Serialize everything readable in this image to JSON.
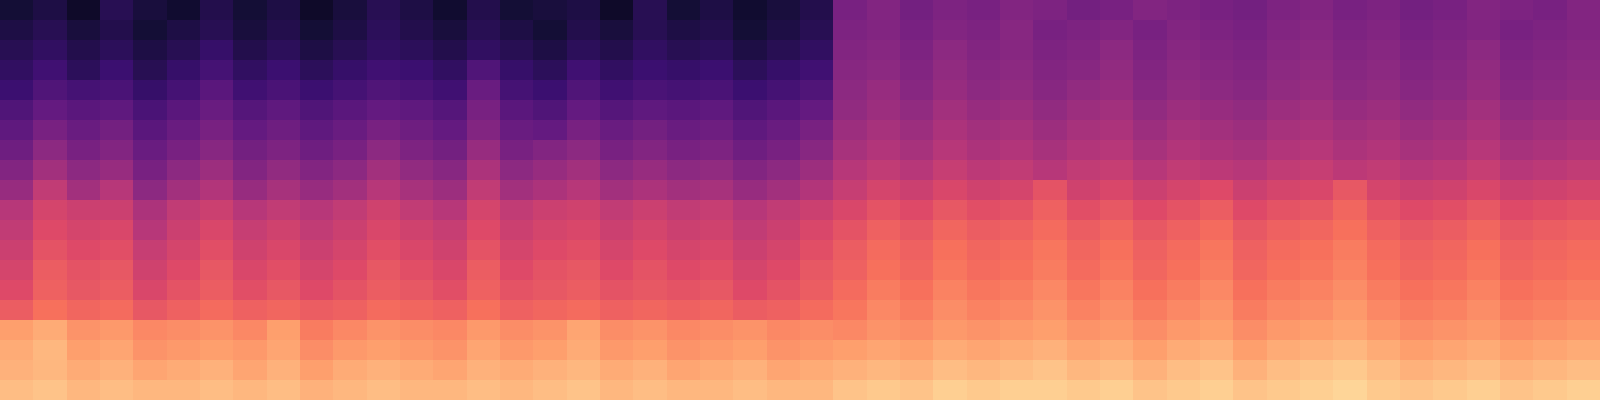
{
  "chart_data": {
    "type": "heatmap",
    "zlim": [
      -80,
      0
    ],
    "tick_labels": false,
    "cells": [
      [
        -72,
        -70,
        -74,
        -68,
        -71,
        -73,
        -69,
        -72,
        -70,
        -74,
        -71,
        -68,
        -70,
        -73,
        -69,
        -72,
        -71,
        -70,
        -74,
        -68,
        -72,
        -70,
        -73,
        -71,
        -69,
        -52,
        -50,
        -53,
        -51,
        -52,
        -50,
        -51,
        -53,
        -52,
        -50,
        -51,
        -52,
        -53,
        -51,
        -50,
        -52,
        -51,
        -53,
        -52,
        -50,
        -51,
        -52,
        -50
      ],
      [
        -70,
        -68,
        -71,
        -69,
        -72,
        -70,
        -68,
        -71,
        -69,
        -72,
        -70,
        -67,
        -69,
        -71,
        -68,
        -70,
        -72,
        -69,
        -71,
        -68,
        -70,
        -69,
        -72,
        -70,
        -68,
        -51,
        -50,
        -52,
        -50,
        -51,
        -49,
        -52,
        -51,
        -50,
        -52,
        -50,
        -51,
        -52,
        -50,
        -49,
        -51,
        -50,
        -52,
        -51,
        -50,
        -52,
        -51,
        -50
      ],
      [
        -68,
        -66,
        -69,
        -67,
        -70,
        -68,
        -65,
        -69,
        -67,
        -70,
        -68,
        -66,
        -67,
        -69,
        -66,
        -68,
        -70,
        -67,
        -69,
        -66,
        -68,
        -67,
        -70,
        -68,
        -66,
        -50,
        -49,
        -51,
        -48,
        -50,
        -49,
        -51,
        -50,
        -48,
        -51,
        -49,
        -50,
        -51,
        -49,
        -48,
        -50,
        -49,
        -51,
        -50,
        -48,
        -51,
        -50,
        -49
      ],
      [
        -66,
        -63,
        -67,
        -64,
        -68,
        -65,
        -62,
        -66,
        -64,
        -67,
        -65,
        -63,
        -64,
        -66,
        -60,
        -65,
        -67,
        -63,
        -66,
        -64,
        -65,
        -64,
        -67,
        -65,
        -63,
        -49,
        -48,
        -50,
        -47,
        -49,
        -48,
        -50,
        -49,
        -47,
        -50,
        -48,
        -49,
        -50,
        -48,
        -47,
        -49,
        -48,
        -50,
        -49,
        -47,
        -50,
        -49,
        -48
      ],
      [
        -64,
        -60,
        -62,
        -61,
        -65,
        -62,
        -58,
        -63,
        -61,
        -64,
        -62,
        -60,
        -61,
        -63,
        -55,
        -62,
        -64,
        -60,
        -63,
        -61,
        -62,
        -61,
        -64,
        -62,
        -60,
        -48,
        -46,
        -49,
        -46,
        -48,
        -47,
        -49,
        -47,
        -46,
        -49,
        -47,
        -48,
        -49,
        -47,
        -46,
        -48,
        -47,
        -49,
        -48,
        -46,
        -49,
        -48,
        -47
      ],
      [
        -60,
        -56,
        -58,
        -57,
        -61,
        -58,
        -55,
        -59,
        -57,
        -60,
        -58,
        -56,
        -57,
        -59,
        -52,
        -58,
        -60,
        -56,
        -59,
        -57,
        -58,
        -57,
        -60,
        -58,
        -56,
        -47,
        -45,
        -47,
        -44,
        -46,
        -45,
        -47,
        -45,
        -44,
        -47,
        -45,
        -46,
        -47,
        -45,
        -44,
        -46,
        -45,
        -47,
        -46,
        -44,
        -47,
        -46,
        -45
      ],
      [
        -57,
        -52,
        -55,
        -53,
        -58,
        -55,
        -52,
        -56,
        -54,
        -57,
        -55,
        -52,
        -54,
        -56,
        -50,
        -55,
        -56,
        -52,
        -55,
        -53,
        -55,
        -54,
        -57,
        -55,
        -52,
        -45,
        -43,
        -45,
        -42,
        -44,
        -43,
        -45,
        -43,
        -42,
        -45,
        -43,
        -44,
        -45,
        -43,
        -42,
        -44,
        -43,
        -45,
        -44,
        -42,
        -45,
        -44,
        -43
      ],
      [
        -54,
        -48,
        -52,
        -50,
        -55,
        -52,
        -49,
        -53,
        -51,
        -54,
        -52,
        -48,
        -51,
        -53,
        -46,
        -52,
        -50,
        -48,
        -52,
        -50,
        -52,
        -51,
        -54,
        -52,
        -49,
        -43,
        -41,
        -43,
        -40,
        -42,
        -41,
        -43,
        -41,
        -40,
        -43,
        -41,
        -42,
        -43,
        -41,
        -40,
        -42,
        -41,
        -43,
        -42,
        -40,
        -43,
        -42,
        -41
      ],
      [
        -50,
        -44,
        -48,
        -46,
        -52,
        -48,
        -45,
        -50,
        -47,
        -50,
        -48,
        -44,
        -47,
        -49,
        -42,
        -48,
        -46,
        -44,
        -48,
        -46,
        -48,
        -47,
        -50,
        -48,
        -45,
        -40,
        -38,
        -40,
        -37,
        -39,
        -38,
        -40,
        -38,
        -37,
        -40,
        -38,
        -39,
        -40,
        -38,
        -37,
        -39,
        -38,
        -40,
        -39,
        -37,
        -40,
        -39,
        -38
      ],
      [
        -46,
        -38,
        -44,
        -40,
        -48,
        -44,
        -41,
        -46,
        -43,
        -46,
        -44,
        -40,
        -43,
        -45,
        -38,
        -44,
        -42,
        -40,
        -44,
        -42,
        -44,
        -43,
        -46,
        -44,
        -41,
        -37,
        -34,
        -36,
        -33,
        -35,
        -34,
        -30,
        -35,
        -33,
        -36,
        -34,
        -32,
        -36,
        -34,
        -33,
        -29,
        -34,
        -36,
        -35,
        -33,
        -36,
        -35,
        -34
      ],
      [
        -40,
        -34,
        -36,
        -36,
        -42,
        -38,
        -36,
        -40,
        -38,
        -40,
        -38,
        -35,
        -38,
        -40,
        -34,
        -38,
        -36,
        -35,
        -38,
        -36,
        -38,
        -37,
        -40,
        -38,
        -36,
        -33,
        -30,
        -32,
        -29,
        -31,
        -30,
        -27,
        -31,
        -29,
        -32,
        -30,
        -28,
        -32,
        -30,
        -29,
        -26,
        -30,
        -32,
        -31,
        -29,
        -32,
        -31,
        -30
      ],
      [
        -38,
        -32,
        -34,
        -33,
        -40,
        -36,
        -33,
        -37,
        -35,
        -38,
        -36,
        -33,
        -35,
        -37,
        -32,
        -36,
        -34,
        -33,
        -36,
        -34,
        -36,
        -35,
        -38,
        -36,
        -33,
        -30,
        -27,
        -29,
        -26,
        -28,
        -27,
        -25,
        -28,
        -26,
        -29,
        -27,
        -25,
        -29,
        -27,
        -26,
        -24,
        -27,
        -29,
        -28,
        -26,
        -29,
        -28,
        -27
      ],
      [
        -36,
        -30,
        -32,
        -31,
        -37,
        -34,
        -31,
        -35,
        -33,
        -36,
        -34,
        -31,
        -33,
        -35,
        -30,
        -34,
        -32,
        -31,
        -34,
        -32,
        -34,
        -33,
        -36,
        -34,
        -31,
        -28,
        -25,
        -27,
        -24,
        -26,
        -25,
        -23,
        -26,
        -24,
        -27,
        -25,
        -23,
        -27,
        -25,
        -24,
        -22,
        -25,
        -27,
        -26,
        -24,
        -27,
        -26,
        -25
      ],
      [
        -34,
        -28,
        -30,
        -29,
        -35,
        -32,
        -29,
        -33,
        -31,
        -34,
        -32,
        -29,
        -31,
        -33,
        -28,
        -32,
        -30,
        -29,
        -32,
        -30,
        -32,
        -31,
        -34,
        -32,
        -29,
        -27,
        -24,
        -26,
        -23,
        -25,
        -24,
        -22,
        -25,
        -23,
        -26,
        -24,
        -22,
        -26,
        -24,
        -23,
        -21,
        -24,
        -26,
        -25,
        -23,
        -26,
        -25,
        -24
      ],
      [
        -32,
        -27,
        -29,
        -28,
        -33,
        -30,
        -28,
        -31,
        -29,
        -32,
        -30,
        -28,
        -29,
        -31,
        -27,
        -30,
        -29,
        -28,
        -30,
        -29,
        -30,
        -29,
        -32,
        -30,
        -28,
        -25,
        -22,
        -24,
        -21,
        -23,
        -22,
        -20,
        -23,
        -21,
        -24,
        -22,
        -20,
        -24,
        -22,
        -21,
        -19,
        -22,
        -24,
        -23,
        -21,
        -24,
        -23,
        -22
      ],
      [
        -28,
        -24,
        -26,
        -25,
        -29,
        -27,
        -25,
        -27,
        -26,
        -28,
        -27,
        -25,
        -26,
        -27,
        -24,
        -27,
        -26,
        -25,
        -27,
        -26,
        -27,
        -26,
        -28,
        -27,
        -25,
        -23,
        -20,
        -22,
        -19,
        -21,
        -20,
        -18,
        -21,
        -19,
        -22,
        -20,
        -18,
        -22,
        -20,
        -19,
        -17,
        -20,
        -22,
        -21,
        -19,
        -22,
        -21,
        -20
      ],
      [
        -16,
        -14,
        -18,
        -17,
        -20,
        -19,
        -18,
        -20,
        -16,
        -22,
        -20,
        -18,
        -19,
        -20,
        -17,
        -19,
        -18,
        -15,
        -19,
        -18,
        -20,
        -19,
        -18,
        -20,
        -19,
        -20,
        -18,
        -19,
        -17,
        -18,
        -17,
        -16,
        -18,
        -17,
        -19,
        -17,
        -16,
        -19,
        -17,
        -16,
        -15,
        -17,
        -19,
        -18,
        -17,
        -19,
        -18,
        -17
      ],
      [
        -14,
        -12,
        -16,
        -15,
        -18,
        -17,
        -16,
        -17,
        -15,
        -19,
        -17,
        -16,
        -17,
        -18,
        -15,
        -17,
        -16,
        -14,
        -17,
        -16,
        -18,
        -17,
        -16,
        -18,
        -17,
        -16,
        -15,
        -16,
        -14,
        -15,
        -14,
        -13,
        -15,
        -14,
        -16,
        -14,
        -13,
        -16,
        -14,
        -13,
        -12,
        -14,
        -16,
        -15,
        -14,
        -16,
        -15,
        -14
      ],
      [
        -13,
        -12,
        -14,
        -13,
        -15,
        -14,
        -13,
        -15,
        -13,
        -16,
        -14,
        -13,
        -14,
        -15,
        -13,
        -14,
        -13,
        -12,
        -14,
        -13,
        -15,
        -14,
        -13,
        -15,
        -14,
        -13,
        -12,
        -13,
        -11,
        -12,
        -11,
        -10,
        -12,
        -11,
        -13,
        -11,
        -10,
        -13,
        -11,
        -10,
        -9,
        -11,
        -13,
        -12,
        -11,
        -13,
        -12,
        -11
      ],
      [
        -11,
        -10,
        -12,
        -11,
        -12,
        -12,
        -11,
        -12,
        -11,
        -13,
        -12,
        -11,
        -12,
        -12,
        -11,
        -12,
        -11,
        -10,
        -12,
        -11,
        -12,
        -12,
        -11,
        -12,
        -12,
        -10,
        -9,
        -10,
        -8,
        -9,
        -8,
        -8,
        -9,
        -8,
        -10,
        -9,
        -8,
        -10,
        -9,
        -8,
        -7,
        -9,
        -10,
        -9,
        -8,
        -10,
        -9,
        -8
      ]
    ]
  }
}
